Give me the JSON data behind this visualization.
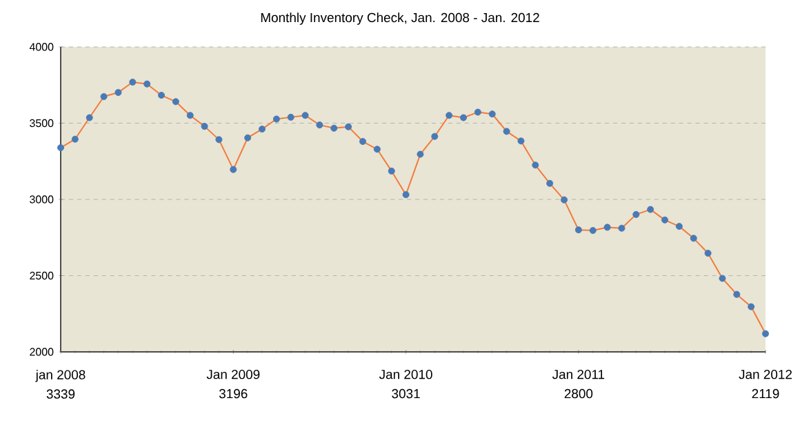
{
  "chart_data": {
    "type": "line",
    "title": "Monthly Inventory Check, Jan. 2008 - Jan. 2012",
    "categories": [
      "jan 2008",
      null,
      null,
      null,
      null,
      null,
      null,
      null,
      null,
      null,
      null,
      null,
      "Jan 2009",
      null,
      null,
      null,
      null,
      null,
      null,
      null,
      null,
      null,
      null,
      null,
      "Jan 2010",
      null,
      null,
      null,
      null,
      null,
      null,
      null,
      null,
      null,
      null,
      null,
      "Jan 2011",
      null,
      null,
      null,
      null,
      null,
      null,
      null,
      null,
      null,
      null,
      null,
      null,
      "Jan 2012"
    ],
    "series": [
      {
        "color": "#f47a3c",
        "values": [
          3339,
          3395,
          3536,
          3674,
          3701,
          3769,
          3757,
          3683,
          3641,
          3551,
          3479,
          3392,
          3196,
          3404,
          3461,
          3527,
          3539,
          3551,
          3488,
          3467,
          3476,
          3380,
          3329,
          3186,
          3031,
          3296,
          3413,
          3551,
          3536,
          3572,
          3560,
          3446,
          3383,
          3225,
          3105,
          2997,
          2800,
          2796,
          2817,
          2811,
          2901,
          2934,
          2865,
          2823,
          2745,
          2647,
          2482,
          2377,
          2296,
          2119
        ],
        "value_labels": [
          "3339",
          null,
          null,
          null,
          null,
          null,
          null,
          null,
          null,
          null,
          null,
          null,
          "3196",
          null,
          null,
          null,
          null,
          null,
          null,
          null,
          null,
          null,
          null,
          null,
          "3031",
          null,
          null,
          null,
          null,
          null,
          null,
          null,
          null,
          null,
          null,
          null,
          "2800",
          null,
          null,
          null,
          null,
          null,
          null,
          null,
          null,
          null,
          null,
          null,
          null,
          "2119"
        ],
        "colors": [
          "#4a7ab5",
          "#4a7ab5",
          "#4a7ab5",
          "#4a7ab5",
          "#4a7ab5",
          "#4a7ab5",
          "#4a7ab5",
          "#4a7ab5",
          "#4a7ab5",
          "#4a7ab5",
          "#4a7ab5",
          "#4a7ab5",
          "#4a7ab5",
          "#4a7ab5",
          "#4a7ab5",
          "#4a7ab5",
          "#4a7ab5",
          "#4a7ab5",
          "#4a7ab5",
          "#4a7ab5",
          "#4a7ab5",
          "#4a7ab5",
          "#4a7ab5",
          "#4a7ab5",
          "#4a7ab5",
          "#4a7ab5",
          "#4a7ab5",
          "#4a7ab5",
          "#4a7ab5",
          "#4a7ab5",
          "#4a7ab5",
          "#4a7ab5",
          "#4a7ab5",
          "#4a7ab5",
          "#4a7ab5",
          "#4a7ab5",
          "#4a7ab5",
          "#4a7ab5",
          "#4a7ab5",
          "#4a7ab5",
          "#4a7ab5",
          "#4a7ab5",
          "#4a7ab5",
          "#4a7ab5",
          "#4a7ab5",
          "#4a7ab5",
          "#4a7ab5",
          "#4a7ab5",
          "#4a7ab5",
          "#4a7ab5"
        ]
      }
    ],
    "ylim": [
      2000,
      4000
    ],
    "yticks": [
      2000,
      2500,
      3000,
      3500,
      4000
    ],
    "grid": "y",
    "marker": "circle",
    "line_style": "solid",
    "legend": false
  }
}
